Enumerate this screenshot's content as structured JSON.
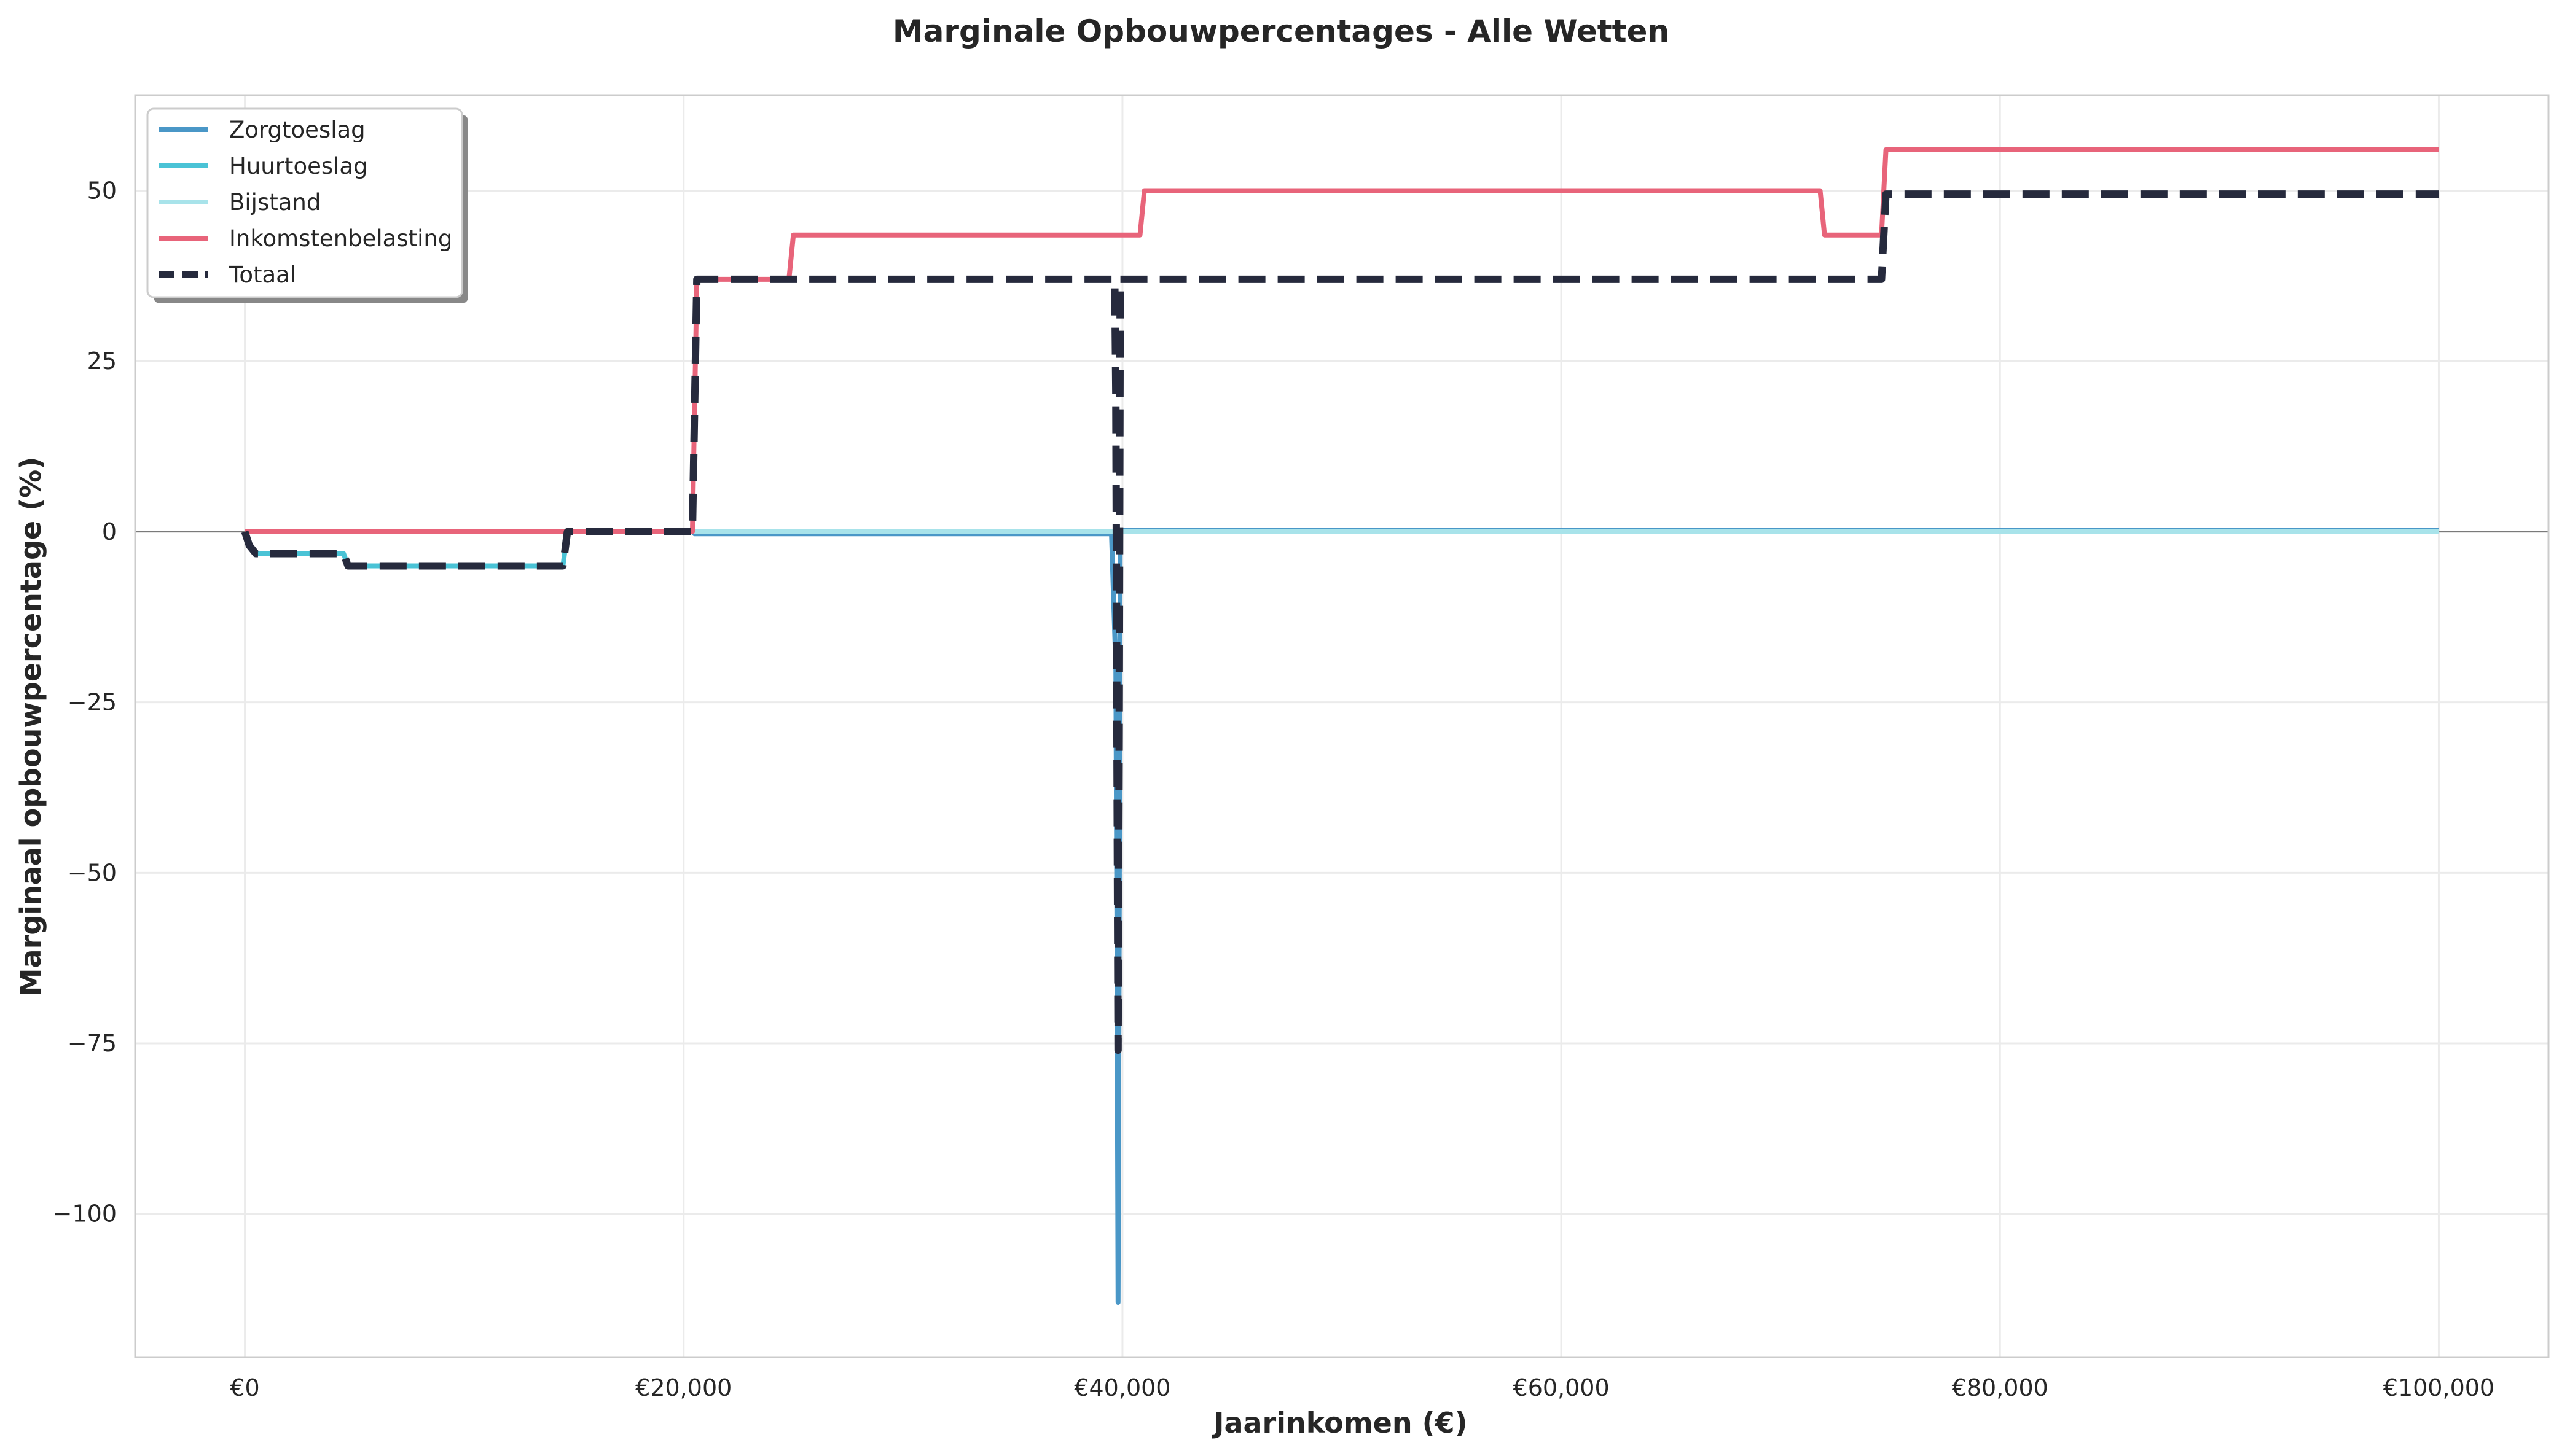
{
  "chart_data": {
    "type": "line",
    "title": "Marginale Opbouwpercentages - Alle Wetten",
    "xlabel": "Jaarinkomen (€)",
    "ylabel": "Marginaal opbouwpercentage (%)",
    "xlim": [
      -5000,
      105000
    ],
    "ylim": [
      -121,
      64
    ],
    "x_ticks": [
      {
        "value": 0,
        "label": "€0"
      },
      {
        "value": 20000,
        "label": "€20,000"
      },
      {
        "value": 40000,
        "label": "€40,000"
      },
      {
        "value": 60000,
        "label": "€60,000"
      },
      {
        "value": 80000,
        "label": "€80,000"
      },
      {
        "value": 100000,
        "label": "€100,000"
      }
    ],
    "y_ticks": [
      {
        "value": 50,
        "label": "50"
      },
      {
        "value": 25,
        "label": "25"
      },
      {
        "value": 0,
        "label": "0"
      },
      {
        "value": -25,
        "label": "−25"
      },
      {
        "value": -50,
        "label": "−50"
      },
      {
        "value": -75,
        "label": "−75"
      },
      {
        "value": -100,
        "label": "−100"
      }
    ],
    "grid": true,
    "zero_line": true,
    "legend_position": "top-left",
    "series": [
      {
        "name": "Zorgtoeslag",
        "color": "#4a97c7",
        "style": "solid",
        "points": [
          [
            0,
            0
          ],
          [
            20400,
            0
          ],
          [
            20500,
            -0.3
          ],
          [
            39500,
            -0.3
          ],
          [
            39700,
            -20
          ],
          [
            39750,
            -60
          ],
          [
            39800,
            -113
          ],
          [
            39850,
            -60
          ],
          [
            39900,
            0.2
          ],
          [
            40500,
            0.2
          ],
          [
            100000,
            0.2
          ]
        ]
      },
      {
        "name": "Huurtoeslag",
        "color": "#4ac3d6",
        "style": "solid",
        "points": [
          [
            0,
            0
          ],
          [
            200,
            -2
          ],
          [
            500,
            -3.2
          ],
          [
            4500,
            -3.2
          ],
          [
            4700,
            -5
          ],
          [
            14500,
            -5
          ],
          [
            14700,
            0
          ],
          [
            100000,
            0
          ]
        ]
      },
      {
        "name": "Bijstand",
        "color": "#a8e3ea",
        "style": "solid",
        "points": [
          [
            0,
            0
          ],
          [
            100000,
            0
          ]
        ]
      },
      {
        "name": "Inkomstenbelasting",
        "color": "#e8647a",
        "style": "solid",
        "points": [
          [
            0,
            0
          ],
          [
            20400,
            0
          ],
          [
            20600,
            37
          ],
          [
            24800,
            37
          ],
          [
            25000,
            43.5
          ],
          [
            40800,
            43.5
          ],
          [
            41000,
            50
          ],
          [
            71800,
            50
          ],
          [
            72000,
            43.5
          ],
          [
            74600,
            43.5
          ],
          [
            74800,
            56
          ],
          [
            100000,
            56
          ]
        ]
      },
      {
        "name": "Totaal",
        "color": "#262a3d",
        "style": "dashed",
        "points": [
          [
            0,
            0
          ],
          [
            200,
            -2
          ],
          [
            500,
            -3.2
          ],
          [
            4500,
            -3.2
          ],
          [
            4700,
            -5
          ],
          [
            14500,
            -5
          ],
          [
            14700,
            0
          ],
          [
            20400,
            0
          ],
          [
            20600,
            37
          ],
          [
            39650,
            37
          ],
          [
            39700,
            20
          ],
          [
            39750,
            -30
          ],
          [
            39800,
            -76
          ],
          [
            39850,
            -30
          ],
          [
            39900,
            37
          ],
          [
            74600,
            37
          ],
          [
            74800,
            49.5
          ],
          [
            100000,
            49.5
          ]
        ]
      }
    ]
  }
}
